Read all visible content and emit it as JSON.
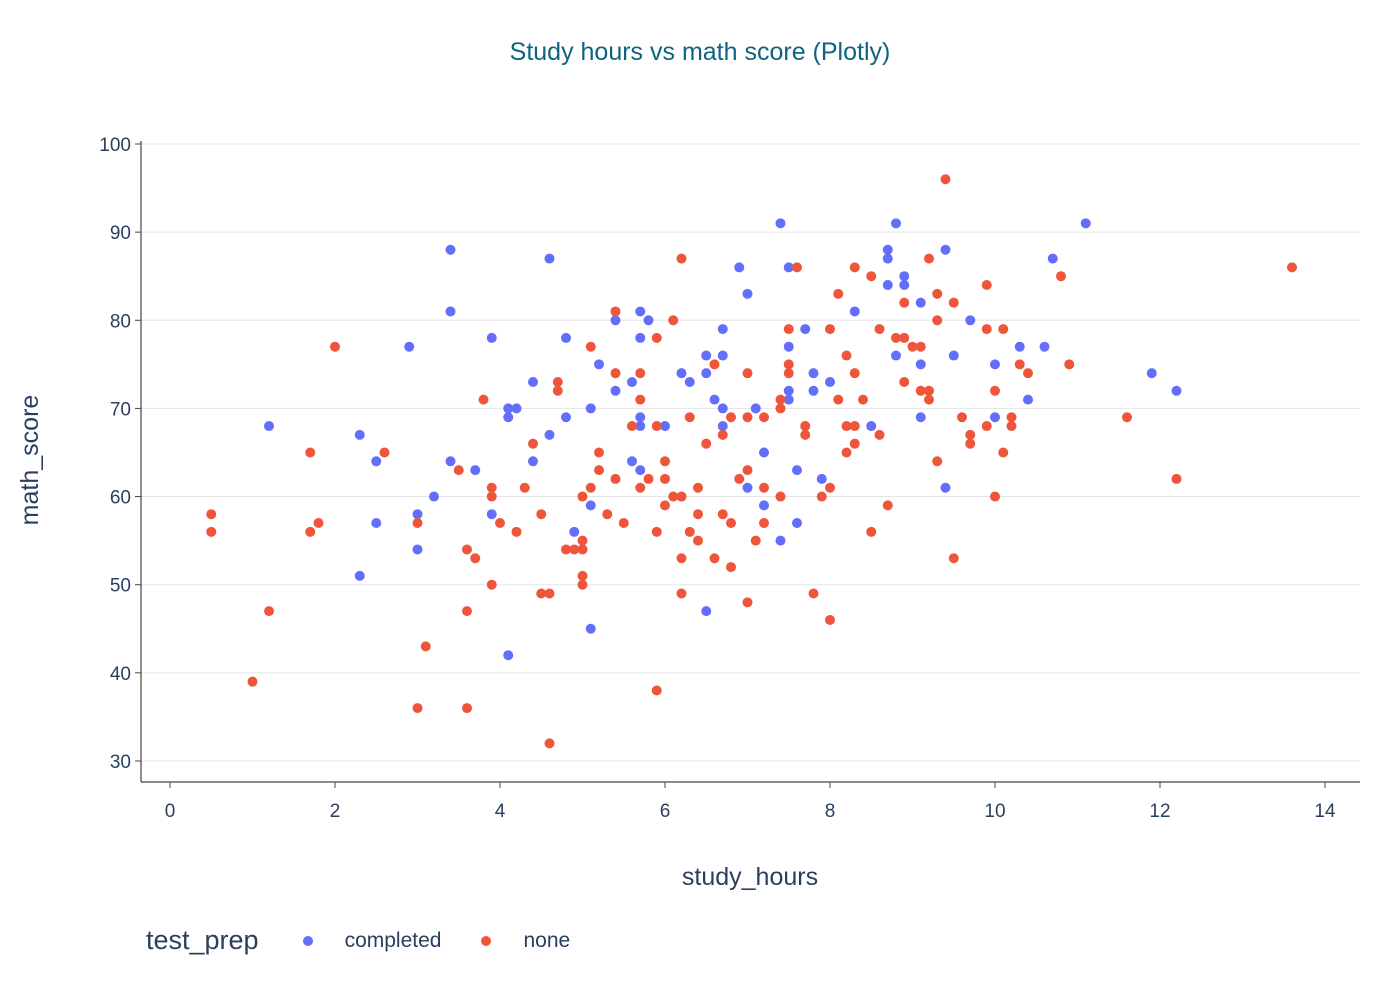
{
  "chart_data": {
    "type": "scatter",
    "title": "Study hours vs math score (Plotly)",
    "xlabel": "study_hours",
    "ylabel": "math_score",
    "xlim": [
      -0.35,
      14.4
    ],
    "ylim": [
      27.5,
      100.5
    ],
    "xticks": [
      0,
      2,
      4,
      6,
      8,
      10,
      12,
      14
    ],
    "yticks": [
      30,
      40,
      50,
      60,
      70,
      80,
      90,
      100
    ],
    "grid": "horizontal",
    "legend": {
      "title": "test_prep",
      "placement": "bottom-left"
    },
    "series": [
      {
        "name": "completed",
        "color": "#636efa",
        "points": [
          [
            1.2,
            68
          ],
          [
            2.3,
            67
          ],
          [
            2.3,
            51
          ],
          [
            2.5,
            64
          ],
          [
            2.5,
            57
          ],
          [
            2.9,
            77
          ],
          [
            3.0,
            58
          ],
          [
            3.0,
            54
          ],
          [
            3.2,
            60
          ],
          [
            3.4,
            88
          ],
          [
            3.4,
            81
          ],
          [
            3.4,
            64
          ],
          [
            3.7,
            63
          ],
          [
            3.9,
            78
          ],
          [
            3.9,
            58
          ],
          [
            4.1,
            70
          ],
          [
            4.1,
            69
          ],
          [
            4.2,
            70
          ],
          [
            4.1,
            42
          ],
          [
            4.4,
            73
          ],
          [
            4.4,
            64
          ],
          [
            4.6,
            87
          ],
          [
            4.6,
            67
          ],
          [
            4.8,
            78
          ],
          [
            4.8,
            69
          ],
          [
            4.9,
            56
          ],
          [
            5.1,
            70
          ],
          [
            5.1,
            59
          ],
          [
            5.1,
            45
          ],
          [
            5.2,
            75
          ],
          [
            5.4,
            80
          ],
          [
            5.4,
            72
          ],
          [
            5.6,
            73
          ],
          [
            5.6,
            64
          ],
          [
            5.7,
            81
          ],
          [
            5.7,
            78
          ],
          [
            5.7,
            69
          ],
          [
            5.7,
            68
          ],
          [
            5.7,
            63
          ],
          [
            5.8,
            80
          ],
          [
            6.0,
            68
          ],
          [
            6.2,
            74
          ],
          [
            6.3,
            73
          ],
          [
            6.5,
            76
          ],
          [
            6.5,
            74
          ],
          [
            6.5,
            47
          ],
          [
            6.6,
            71
          ],
          [
            6.7,
            79
          ],
          [
            6.7,
            76
          ],
          [
            6.7,
            70
          ],
          [
            6.7,
            68
          ],
          [
            6.9,
            86
          ],
          [
            7.0,
            83
          ],
          [
            7.0,
            61
          ],
          [
            7.1,
            70
          ],
          [
            7.2,
            65
          ],
          [
            7.2,
            59
          ],
          [
            7.4,
            91
          ],
          [
            7.4,
            55
          ],
          [
            7.5,
            86
          ],
          [
            7.5,
            77
          ],
          [
            7.5,
            72
          ],
          [
            7.5,
            71
          ],
          [
            7.6,
            63
          ],
          [
            7.6,
            57
          ],
          [
            7.7,
            79
          ],
          [
            7.8,
            74
          ],
          [
            7.8,
            72
          ],
          [
            7.9,
            62
          ],
          [
            8.0,
            73
          ],
          [
            8.3,
            81
          ],
          [
            8.5,
            68
          ],
          [
            8.7,
            88
          ],
          [
            8.7,
            87
          ],
          [
            8.7,
            84
          ],
          [
            8.8,
            91
          ],
          [
            8.8,
            76
          ],
          [
            8.9,
            85
          ],
          [
            8.9,
            84
          ],
          [
            9.1,
            82
          ],
          [
            9.1,
            75
          ],
          [
            9.1,
            69
          ],
          [
            9.4,
            88
          ],
          [
            9.4,
            61
          ],
          [
            9.5,
            76
          ],
          [
            9.7,
            80
          ],
          [
            10.0,
            75
          ],
          [
            10.0,
            69
          ],
          [
            10.3,
            77
          ],
          [
            10.4,
            71
          ],
          [
            10.6,
            77
          ],
          [
            10.7,
            87
          ],
          [
            11.1,
            91
          ],
          [
            11.9,
            74
          ],
          [
            12.2,
            72
          ]
        ]
      },
      {
        "name": "none",
        "color": "#ef553b",
        "points": [
          [
            0.5,
            58
          ],
          [
            0.5,
            56
          ],
          [
            1.0,
            39
          ],
          [
            1.2,
            47
          ],
          [
            1.7,
            65
          ],
          [
            1.7,
            56
          ],
          [
            1.8,
            57
          ],
          [
            2.0,
            77
          ],
          [
            2.6,
            65
          ],
          [
            3.0,
            57
          ],
          [
            3.0,
            36
          ],
          [
            3.1,
            43
          ],
          [
            3.5,
            63
          ],
          [
            3.6,
            54
          ],
          [
            3.6,
            47
          ],
          [
            3.6,
            36
          ],
          [
            3.7,
            53
          ],
          [
            3.8,
            71
          ],
          [
            3.9,
            61
          ],
          [
            3.9,
            60
          ],
          [
            3.9,
            50
          ],
          [
            4.0,
            57
          ],
          [
            4.2,
            56
          ],
          [
            4.3,
            61
          ],
          [
            4.4,
            66
          ],
          [
            4.5,
            58
          ],
          [
            4.5,
            49
          ],
          [
            4.6,
            49
          ],
          [
            4.6,
            32
          ],
          [
            4.7,
            73
          ],
          [
            4.7,
            72
          ],
          [
            4.8,
            54
          ],
          [
            4.9,
            54
          ],
          [
            5.0,
            60
          ],
          [
            5.0,
            55
          ],
          [
            5.0,
            54
          ],
          [
            5.0,
            51
          ],
          [
            5.0,
            50
          ],
          [
            5.1,
            77
          ],
          [
            5.1,
            61
          ],
          [
            5.2,
            65
          ],
          [
            5.2,
            63
          ],
          [
            5.3,
            58
          ],
          [
            5.4,
            81
          ],
          [
            5.4,
            74
          ],
          [
            5.4,
            62
          ],
          [
            5.5,
            57
          ],
          [
            5.6,
            68
          ],
          [
            5.7,
            74
          ],
          [
            5.7,
            71
          ],
          [
            5.7,
            61
          ],
          [
            5.8,
            62
          ],
          [
            5.9,
            78
          ],
          [
            5.9,
            68
          ],
          [
            5.9,
            56
          ],
          [
            5.9,
            38
          ],
          [
            6.0,
            64
          ],
          [
            6.0,
            62
          ],
          [
            6.0,
            59
          ],
          [
            6.1,
            80
          ],
          [
            6.1,
            60
          ],
          [
            6.2,
            87
          ],
          [
            6.2,
            60
          ],
          [
            6.2,
            53
          ],
          [
            6.2,
            49
          ],
          [
            6.3,
            69
          ],
          [
            6.3,
            56
          ],
          [
            6.4,
            61
          ],
          [
            6.4,
            58
          ],
          [
            6.4,
            55
          ],
          [
            6.5,
            66
          ],
          [
            6.6,
            75
          ],
          [
            6.6,
            53
          ],
          [
            6.7,
            67
          ],
          [
            6.7,
            58
          ],
          [
            6.8,
            69
          ],
          [
            6.8,
            57
          ],
          [
            6.8,
            52
          ],
          [
            6.9,
            62
          ],
          [
            7.0,
            74
          ],
          [
            7.0,
            69
          ],
          [
            7.0,
            63
          ],
          [
            7.0,
            48
          ],
          [
            7.1,
            55
          ],
          [
            7.2,
            69
          ],
          [
            7.2,
            61
          ],
          [
            7.2,
            57
          ],
          [
            7.4,
            71
          ],
          [
            7.4,
            70
          ],
          [
            7.4,
            60
          ],
          [
            7.5,
            79
          ],
          [
            7.5,
            75
          ],
          [
            7.5,
            74
          ],
          [
            7.6,
            86
          ],
          [
            7.7,
            68
          ],
          [
            7.7,
            67
          ],
          [
            7.8,
            49
          ],
          [
            7.9,
            60
          ],
          [
            8.0,
            79
          ],
          [
            8.0,
            61
          ],
          [
            8.0,
            46
          ],
          [
            8.1,
            83
          ],
          [
            8.1,
            71
          ],
          [
            8.2,
            76
          ],
          [
            8.2,
            68
          ],
          [
            8.2,
            65
          ],
          [
            8.3,
            86
          ],
          [
            8.3,
            74
          ],
          [
            8.3,
            68
          ],
          [
            8.3,
            66
          ],
          [
            8.4,
            71
          ],
          [
            8.5,
            85
          ],
          [
            8.5,
            56
          ],
          [
            8.6,
            79
          ],
          [
            8.6,
            67
          ],
          [
            8.7,
            59
          ],
          [
            8.8,
            78
          ],
          [
            8.9,
            82
          ],
          [
            8.9,
            78
          ],
          [
            8.9,
            73
          ],
          [
            9.0,
            77
          ],
          [
            9.1,
            77
          ],
          [
            9.1,
            72
          ],
          [
            9.2,
            87
          ],
          [
            9.2,
            72
          ],
          [
            9.2,
            71
          ],
          [
            9.3,
            83
          ],
          [
            9.3,
            80
          ],
          [
            9.3,
            64
          ],
          [
            9.4,
            96
          ],
          [
            9.5,
            82
          ],
          [
            9.5,
            53
          ],
          [
            9.6,
            69
          ],
          [
            9.7,
            67
          ],
          [
            9.7,
            66
          ],
          [
            9.9,
            84
          ],
          [
            9.9,
            79
          ],
          [
            9.9,
            68
          ],
          [
            10.0,
            72
          ],
          [
            10.0,
            60
          ],
          [
            10.1,
            79
          ],
          [
            10.1,
            65
          ],
          [
            10.2,
            69
          ],
          [
            10.2,
            68
          ],
          [
            10.3,
            75
          ],
          [
            10.4,
            74
          ],
          [
            10.8,
            85
          ],
          [
            10.9,
            75
          ],
          [
            11.6,
            69
          ],
          [
            12.2,
            62
          ],
          [
            13.6,
            86
          ]
        ]
      }
    ]
  }
}
